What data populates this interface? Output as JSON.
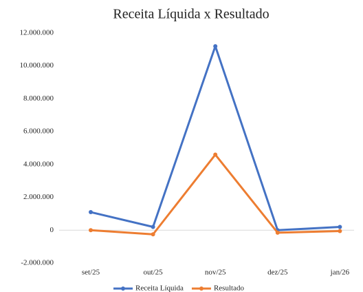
{
  "chart_data": {
    "type": "line",
    "title": "Receita Líquida x Resultado",
    "categories": [
      "set/25",
      "out/25",
      "nov/25",
      "dez/25",
      "jan/26"
    ],
    "series": [
      {
        "name": "Receita Líquida",
        "color": "#4472c4",
        "values": [
          1100000,
          200000,
          11200000,
          0,
          200000
        ]
      },
      {
        "name": "Resultado",
        "color": "#ed7d31",
        "values": [
          0,
          -250000,
          4600000,
          -150000,
          -50000
        ]
      }
    ],
    "ylim": [
      -2000000,
      12000000
    ],
    "yticks": [
      {
        "value": -2000000,
        "label": "-2.000.000"
      },
      0,
      {
        "value": 2000000,
        "label": "2.000.000"
      },
      {
        "value": 4000000,
        "label": "4.000.000"
      },
      {
        "value": 6000000,
        "label": "6.000.000"
      },
      {
        "value": 8000000,
        "label": "8.000.000"
      },
      {
        "value": 10000000,
        "label": "10.000.000"
      },
      {
        "value": 12000000,
        "label": "12.000.000"
      }
    ],
    "grid": false,
    "legend": "bottom"
  }
}
